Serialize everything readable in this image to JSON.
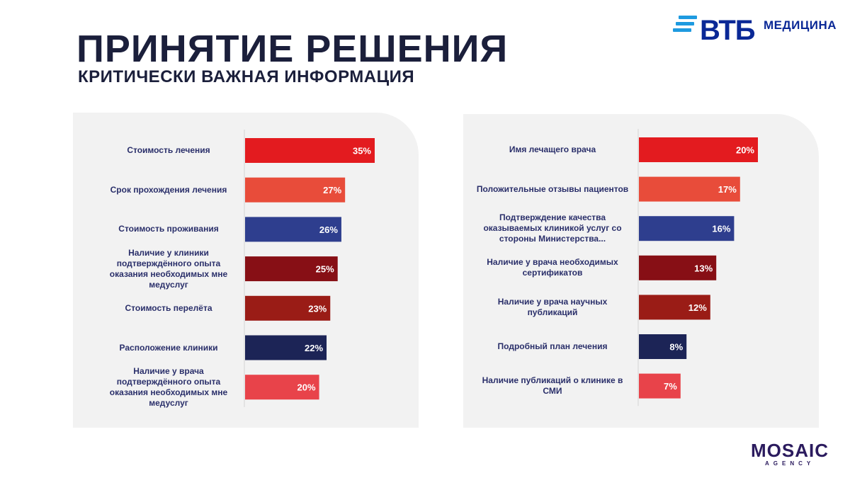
{
  "header": {
    "title": "ПРИНЯТИЕ РЕШЕНИЯ",
    "subtitle": "КРИТИЧЕСКИ ВАЖНАЯ ИНФОРМАЦИЯ"
  },
  "brand": {
    "vtb_word": "ВТБ",
    "vtb_suffix": "МЕДИЦИНА",
    "agency_word": "MOSAIC",
    "agency_sub": "AGENCY"
  },
  "colors": {
    "red": "#e31b1f",
    "coral": "#e84c3a",
    "blue": "#2e3e8e",
    "maroon": "#870f15",
    "rust": "#9a1c16",
    "navy": "#1c2456",
    "pink": "#e8434a",
    "label": "#2a2f6a"
  },
  "chart_data": [
    {
      "type": "bar",
      "orientation": "horizontal",
      "categories": [
        "Стоимость лечения",
        "Срок прохождения лечения",
        "Стоимость проживания",
        "Наличие у клиники подтверждённого опыта оказания необходимых мне медуслуг",
        "Стоимость перелёта",
        "Расположение клиники",
        "Наличие у врача подтверждённого опыта оказания необходимых мне медуслуг"
      ],
      "values": [
        35,
        27,
        26,
        25,
        23,
        22,
        20
      ],
      "value_labels": [
        "35%",
        "27%",
        "26%",
        "25%",
        "23%",
        "22%",
        "20%"
      ],
      "bar_colors": [
        "#e31b1f",
        "#e84c3a",
        "#2e3e8e",
        "#870f15",
        "#9a1c16",
        "#1c2456",
        "#e8434a"
      ],
      "unit": "%",
      "xlim": [
        0,
        35
      ]
    },
    {
      "type": "bar",
      "orientation": "horizontal",
      "categories": [
        "Имя лечащего врача",
        "Положительные отзывы пациентов",
        "Подтверждение качества оказываемых клиникой услуг со стороны Министерства...",
        "Наличие у врача необходимых сертификатов",
        "Наличие у врача научных публикаций",
        "Подробный план лечения",
        "Наличие публикаций о клинике в СМИ"
      ],
      "values": [
        20,
        17,
        16,
        13,
        12,
        8,
        7
      ],
      "value_labels": [
        "20%",
        "17%",
        "16%",
        "13%",
        "12%",
        "8%",
        "7%"
      ],
      "bar_colors": [
        "#e31b1f",
        "#e84c3a",
        "#2e3e8e",
        "#870f15",
        "#9a1c16",
        "#1c2456",
        "#e8434a"
      ],
      "unit": "%",
      "xlim": [
        0,
        20
      ]
    }
  ]
}
